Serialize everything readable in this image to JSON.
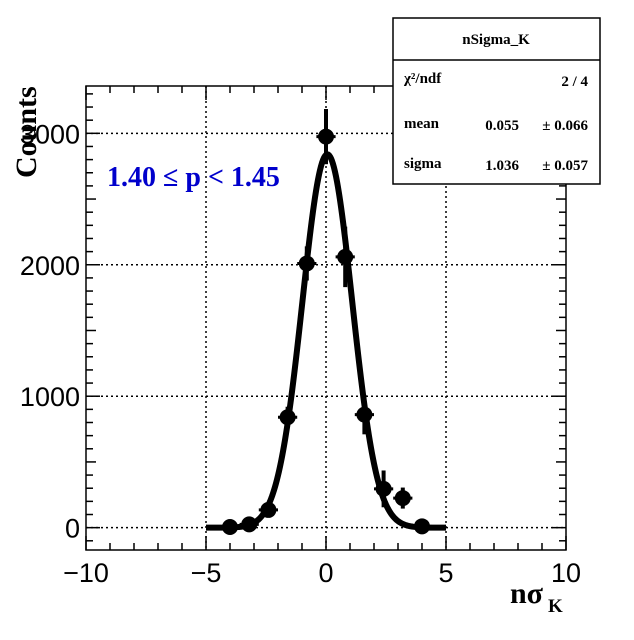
{
  "chart_data": {
    "type": "scatter",
    "xlabel_main": "nσ",
    "xlabel_sub": "K",
    "ylabel": "Counts",
    "xlim": [
      -10,
      10
    ],
    "ylim": [
      -170,
      3360
    ],
    "x_ticks": [
      -10,
      -5,
      0,
      5,
      10
    ],
    "x_tick_labels": [
      "−10",
      "−5",
      "0",
      "5",
      "10"
    ],
    "y_ticks": [
      0,
      1000,
      2000,
      3000
    ],
    "y_tick_labels": [
      "0",
      "1000",
      "2000",
      "3000"
    ],
    "grid": true,
    "annotation": {
      "text": "1.40  ≤ p < 1.45",
      "color": "#0000cc"
    },
    "stats_box": {
      "title": "nSigma_K",
      "rows": [
        {
          "label": "χ²/ndf",
          "value": "2 / 4",
          "error": ""
        },
        {
          "label": "mean",
          "value": "0.055",
          "error": "± 0.066"
        },
        {
          "label": "sigma",
          "value": "1.036",
          "error": "± 0.057"
        }
      ]
    },
    "series": [
      {
        "x": [
          -4.0,
          -3.2,
          -2.4,
          -1.6,
          -0.8,
          0.0,
          0.8,
          1.6,
          2.4,
          3.2,
          4.0
        ],
        "y": [
          5,
          25,
          135,
          840,
          2010,
          2975,
          2060,
          860,
          295,
          225,
          10
        ],
        "yerr": [
          10,
          15,
          40,
          80,
          130,
          210,
          230,
          150,
          140,
          80,
          10
        ]
      }
    ],
    "fit": {
      "type": "gaussian",
      "amplitude": 2840,
      "mean": 0.055,
      "sigma": 1.036,
      "range": [
        -5,
        5
      ]
    }
  }
}
